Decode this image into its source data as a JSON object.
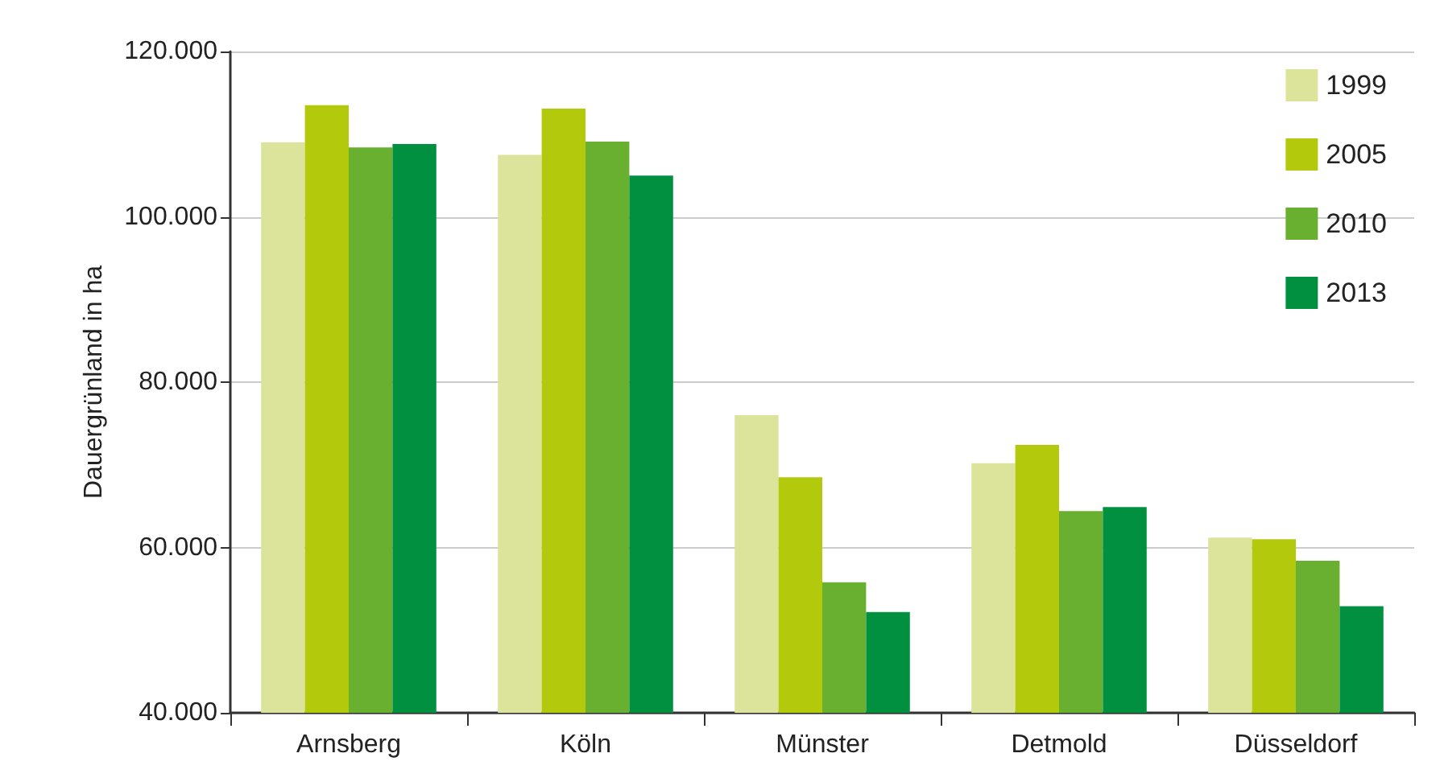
{
  "chart_data": {
    "type": "bar",
    "ylabel": "Dauergrünland in ha",
    "categories": [
      "Arnsberg",
      "Köln",
      "Münster",
      "Detmold",
      "Düsseldorf"
    ],
    "series": [
      {
        "name": "1999",
        "color": "#dce49c",
        "values": [
          109000,
          107500,
          76000,
          70200,
          61200
        ]
      },
      {
        "name": "2005",
        "color": "#b3c90c",
        "values": [
          113500,
          113100,
          68500,
          72400,
          61000
        ]
      },
      {
        "name": "2010",
        "color": "#69b031",
        "values": [
          108400,
          109100,
          55800,
          64400,
          58400
        ]
      },
      {
        "name": "2013",
        "color": "#009040",
        "values": [
          108800,
          105000,
          52200,
          64900,
          52900
        ]
      }
    ],
    "ylim": [
      40000,
      120000
    ],
    "yticks": [
      {
        "value": 40000,
        "label": "40.000"
      },
      {
        "value": 60000,
        "label": "60.000"
      },
      {
        "value": 80000,
        "label": "80.000"
      },
      {
        "value": 100000,
        "label": "100.000"
      },
      {
        "value": 120000,
        "label": "120.000"
      }
    ],
    "grid": "y",
    "legend": "top right"
  }
}
